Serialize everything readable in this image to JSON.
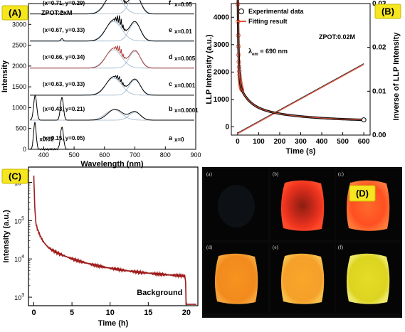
{
  "chart_data": [
    {
      "panel": "(A)",
      "type": "line",
      "title": "ZPOT:2xM",
      "xlabel": "Wavelength (nm)",
      "ylabel": "Intensity",
      "xlim": [
        350,
        900
      ],
      "ylim": [
        0,
        3500
      ],
      "xticks": [
        400,
        500,
        600,
        700,
        800,
        900
      ],
      "yticks": [
        0,
        500,
        1000,
        1500,
        2000,
        2500,
        3000
      ],
      "scale_note": "x0.02",
      "series": [
        {
          "label": "a",
          "x_value": "x=0",
          "coord": "(x=0.15, y=0.05)",
          "offset": 0
        },
        {
          "label": "b",
          "x_value": "x=0.0001",
          "coord": "(x=0.43, y=0.21)",
          "offset": 700
        },
        {
          "label": "c",
          "x_value": "x=0.001",
          "coord": "(x=0.63, y=0.33)",
          "offset": 1300
        },
        {
          "label": "d",
          "x_value": "x=0.005",
          "coord": "(x=0.66, y=0.34)",
          "offset": 1950
        },
        {
          "label": "e",
          "x_value": "x=0.01",
          "coord": "(x=0.67, y=0.33)",
          "offset": 2600
        },
        {
          "label": "f",
          "x_value": "x=0.05",
          "coord": "(x=0.71, y=0.29)",
          "offset": 3250
        }
      ]
    },
    {
      "panel": "(B)",
      "type": "scatter",
      "annotation": "ZPOT:0.02M",
      "lambda_label": "λ",
      "lambda_sub": "em",
      "lambda_value": "= 690 nm",
      "xlabel": "Time (s)",
      "ylabel": "LLP Intensity (a.u.)",
      "y2label": "Inverse of LLP Intensity",
      "xlim": [
        -30,
        630
      ],
      "ylim": [
        -300,
        4500
      ],
      "y2lim": [
        0,
        0.03
      ],
      "xticks": [
        0,
        100,
        200,
        300,
        400,
        500,
        600
      ],
      "yticks": [
        0,
        1000,
        2000,
        3000,
        4000
      ],
      "y2ticks": [
        "0.00",
        "0.01",
        "0.02",
        "0.03"
      ],
      "legend": [
        "Experimental data",
        "Fitting result"
      ],
      "colors": {
        "data": "#333333",
        "fit": "#e8523a"
      }
    },
    {
      "panel": "(C)",
      "type": "line",
      "xlabel": "Time (h)",
      "ylabel": "Intensity (a.u.)",
      "xlim": [
        -0.7,
        21.5
      ],
      "ylog": true,
      "ylim": [
        600,
        2500000
      ],
      "xticks": [
        0,
        5,
        10,
        15,
        20
      ],
      "yticks": [
        {
          "base": "10",
          "exp": "3",
          "v": 1000
        },
        {
          "base": "10",
          "exp": "4",
          "v": 10000
        },
        {
          "base": "10",
          "exp": "5",
          "v": 100000
        },
        {
          "base": "10",
          "exp": "6",
          "v": 1000000
        }
      ],
      "annotation": "Background",
      "colors": {
        "line": "#a01c1c"
      }
    },
    {
      "panel": "(D)",
      "type": "image-grid",
      "cells": [
        "(a)",
        "(b)",
        "(c)",
        "(d)",
        "(e)",
        "(f)"
      ]
    }
  ],
  "badges": {
    "a": "(A)",
    "b": "(B)",
    "c": "(C)",
    "d": "(D)"
  }
}
